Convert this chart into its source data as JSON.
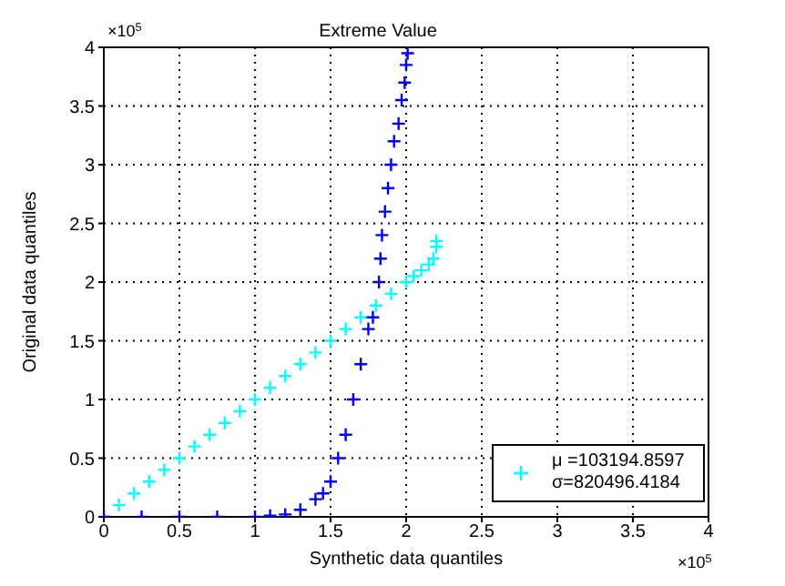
{
  "chart_data": {
    "type": "scatter",
    "title": "Extreme Value",
    "xlabel": "Synthetic data quantiles",
    "ylabel": "Original data quantiles",
    "annotations": [
      "×10$^{5}$",
      "×10$^{5}$"
    ],
    "xlim": [
      0,
      4
    ],
    "xticks": [
      0,
      0.5,
      1,
      1.5,
      2,
      2.5,
      3,
      3.5,
      4
    ],
    "ylim": [
      0,
      4
    ],
    "yticks": [
      0,
      0.5,
      1,
      1.5,
      2,
      2.5,
      3,
      3.5,
      4
    ],
    "grid": true,
    "legend": "bottom right",
    "marker": "cross",
    "series": [
      {
        "name": "μ =103194.8597\nσ=820496.4184",
        "color": "#00ffff",
        "x": [
          0,
          0.1,
          0.2,
          0.3,
          0.4,
          0.5,
          0.6,
          0.7,
          0.8,
          0.9,
          1,
          1.1,
          1.2,
          1.3,
          1.4,
          1.5,
          1.6,
          1.7,
          1.8,
          1.9,
          2,
          2.05,
          2.1,
          2.15,
          2.18,
          2.2,
          2.2
        ],
        "values": [
          0,
          0.1,
          0.2,
          0.3,
          0.4,
          0.5,
          0.6,
          0.7,
          0.8,
          0.9,
          1,
          1.1,
          1.2,
          1.3,
          1.4,
          1.5,
          1.6,
          1.7,
          1.8,
          1.9,
          2,
          2.05,
          2.1,
          2.15,
          2.2,
          2.3,
          2.35
        ]
      },
      {
        "color": "#0000ff",
        "x": [
          0,
          0.25,
          0.5,
          0.75,
          1,
          1.1,
          1.2,
          1.3,
          1.4,
          1.45,
          1.5,
          1.55,
          1.6,
          1.65,
          1.7,
          1.75,
          1.78,
          1.82,
          1.83,
          1.84,
          1.86,
          1.88,
          1.9,
          1.92,
          1.95,
          1.97,
          1.99,
          2,
          2.01
        ],
        "values": [
          0,
          0,
          0,
          0,
          0,
          0.01,
          0.02,
          0.06,
          0.15,
          0.2,
          0.3,
          0.5,
          0.7,
          1,
          1.3,
          1.6,
          1.7,
          2,
          2.2,
          2.4,
          2.6,
          2.8,
          3,
          3.2,
          3.35,
          3.55,
          3.7,
          3.85,
          3.95
        ]
      }
    ]
  }
}
